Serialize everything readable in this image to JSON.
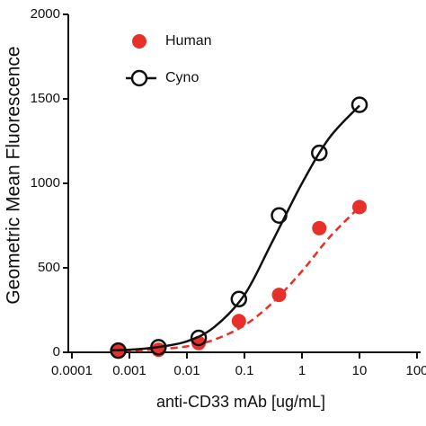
{
  "chart_data": {
    "type": "scatter",
    "x_label": "anti-CD33 mAb [ug/mL]",
    "y_label": "Geometric Mean Fluorescence",
    "xscale": "log",
    "xlim": [
      0.0001,
      100
    ],
    "xticks": [
      0.0001,
      0.001,
      0.01,
      0.1,
      1,
      10,
      100
    ],
    "ylim": [
      0,
      2000
    ],
    "yticks": [
      0,
      500,
      1000,
      1500,
      2000
    ],
    "legend": "top-left",
    "series": [
      {
        "name": "Human",
        "color": "#e8302a",
        "marker": "filled",
        "x": [
          0.00064,
          0.0032,
          0.016,
          0.08,
          0.4,
          2,
          10
        ],
        "values": [
          10,
          15,
          55,
          185,
          340,
          735,
          860
        ],
        "fit": {
          "line_style": "dashed",
          "x": [
            0.0005,
            0.001,
            0.003,
            0.01,
            0.03,
            0.1,
            0.3,
            1,
            3,
            10
          ],
          "values": [
            8,
            10,
            18,
            35,
            75,
            160,
            290,
            480,
            680,
            860
          ]
        }
      },
      {
        "name": "Cyno",
        "color": "#111111",
        "marker": "open",
        "x": [
          0.00064,
          0.0032,
          0.016,
          0.08,
          0.4,
          2,
          10
        ],
        "values": [
          10,
          30,
          85,
          315,
          810,
          1180,
          1465
        ],
        "fit": {
          "line_style": "solid",
          "x": [
            0.0005,
            0.001,
            0.003,
            0.01,
            0.03,
            0.1,
            0.3,
            1,
            3,
            10
          ],
          "values": [
            12,
            15,
            30,
            65,
            150,
            340,
            650,
            1000,
            1270,
            1460
          ]
        }
      }
    ]
  }
}
